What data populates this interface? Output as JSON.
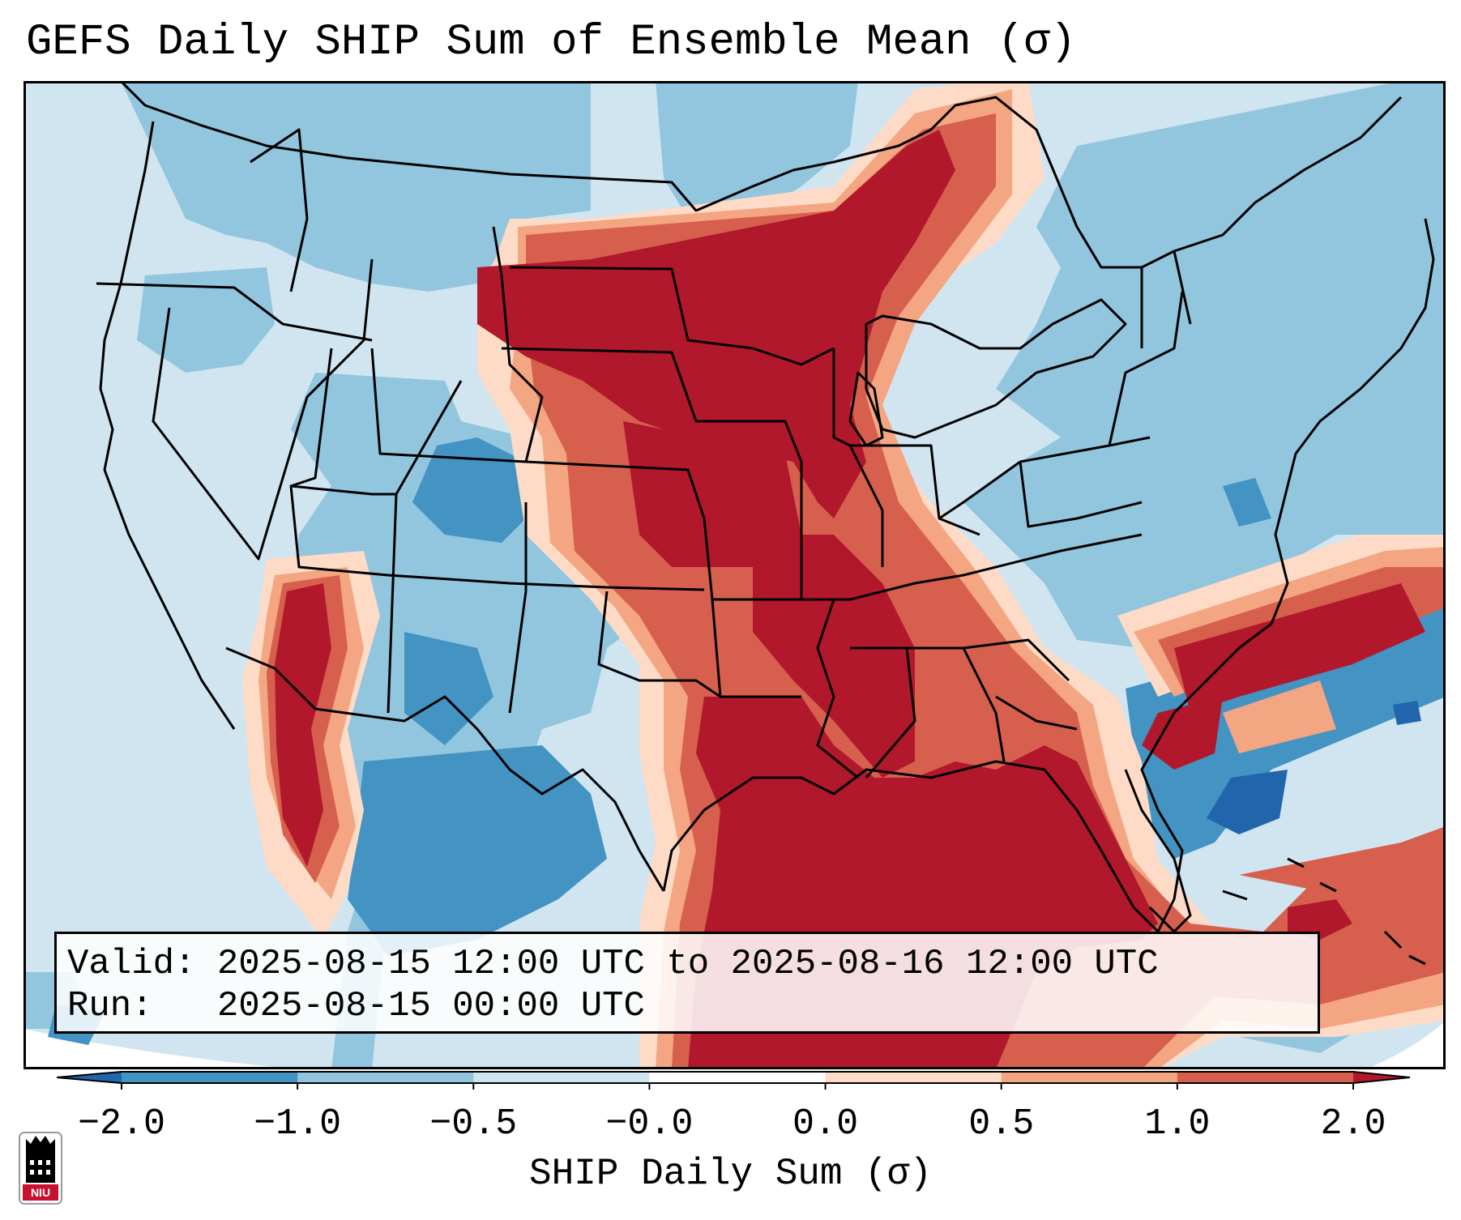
{
  "title": "GEFS Daily SHIP Sum of Ensemble Mean (σ)",
  "info": {
    "valid_line": "Valid: 2025-08-15 12:00 UTC to 2025-08-16 12:00 UTC",
    "run_line": "Run:   2025-08-15 00:00 UTC"
  },
  "colorbar": {
    "label": "SHIP Daily Sum (σ)",
    "ticks": [
      "−2.0",
      "−1.0",
      "−0.5",
      "−0.0",
      "0.0",
      "0.5",
      "1.0",
      "2.0"
    ],
    "colors": [
      "#4393c3",
      "#92c5de",
      "#d1e5f0",
      "#ffffff",
      "#fddbc7",
      "#f4a582",
      "#d6604d"
    ],
    "extend_low": "#2166ac",
    "extend_high": "#b2182b"
  },
  "map": {
    "region": "Contiguous United States and surroundings",
    "field_colors": {
      "background": "#d1e5f0",
      "light_blue": "#92c5de",
      "mid_blue": "#4393c3",
      "dark_blue": "#2166ac",
      "pale_red": "#fddbc7",
      "light_red": "#f4a582",
      "mid_red": "#d6604d",
      "dark_red": "#b2182b",
      "border": "#000000"
    }
  },
  "logo": {
    "text": "NIU",
    "color": "#c8102e"
  }
}
